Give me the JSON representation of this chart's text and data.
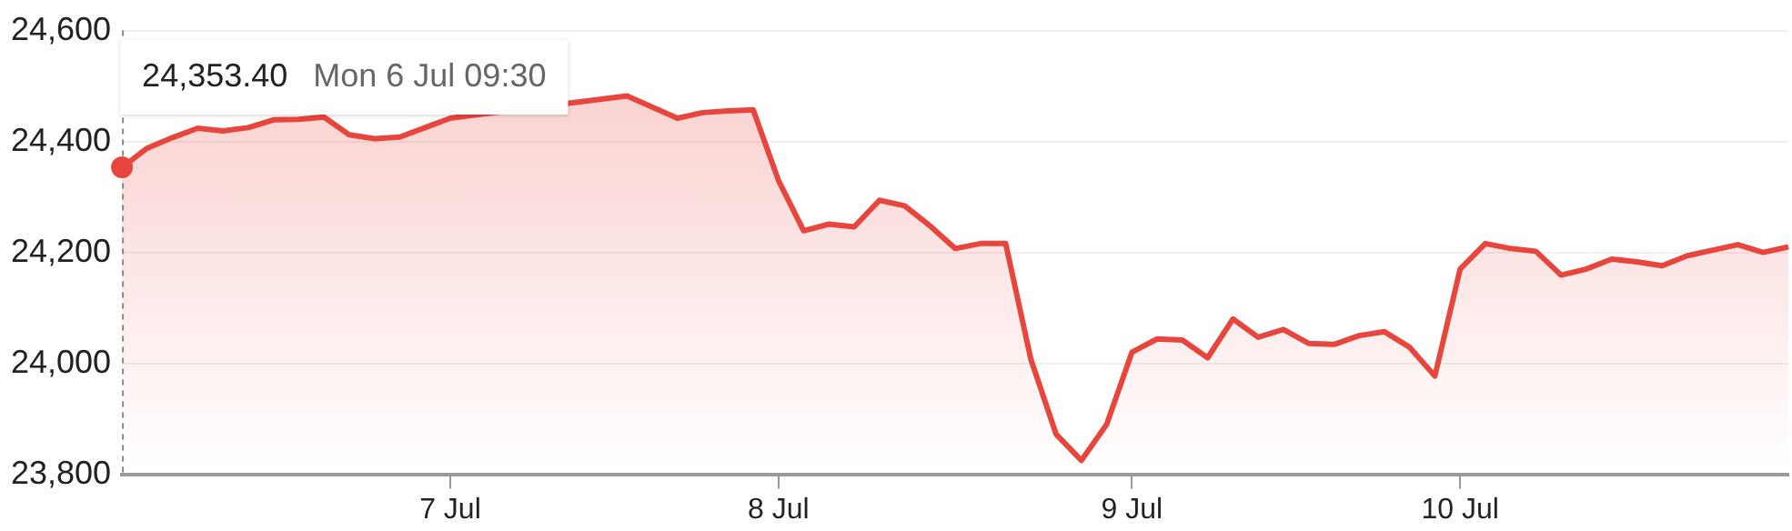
{
  "chart_data": {
    "type": "area",
    "categories": [
      null,
      null,
      null,
      null,
      null,
      null,
      null,
      null,
      null,
      null,
      null,
      null,
      null,
      "7 Jul",
      null,
      null,
      null,
      null,
      null,
      null,
      null,
      null,
      null,
      null,
      null,
      null,
      "8 Jul",
      null,
      null,
      null,
      null,
      null,
      null,
      null,
      null,
      null,
      null,
      null,
      null,
      null,
      "9 Jul",
      null,
      null,
      null,
      null,
      null,
      null,
      null,
      null,
      null,
      null,
      null,
      null,
      "10 Jul",
      null,
      null,
      null,
      null,
      null,
      null,
      null,
      null,
      null,
      null,
      null,
      null,
      null
    ],
    "series": [
      {
        "color": "#e8453c",
        "values": [
          24353.4,
          24388,
          24407,
          24424,
          24419,
          24425,
          24439,
          24440,
          24444,
          24412,
          24405,
          24408,
          24425,
          24442,
          null,
          null,
          null,
          null,
          null,
          null,
          24482,
          24462,
          24442,
          24452,
          24455,
          24457,
          24330,
          24239,
          24251,
          24246,
          24294,
          24284,
          24248,
          24207,
          24216,
          24216,
          24007,
          23872,
          23825,
          23890,
          24020,
          24044,
          24042,
          24010,
          24080,
          24047,
          24061,
          24036,
          24034,
          24050,
          24057,
          24029,
          23977,
          24170,
          24216,
          24207,
          24202,
          24159,
          24170,
          24188,
          24183,
          24176,
          24194,
          24204,
          24214,
          24200,
          24210
        ]
      }
    ],
    "ylim": [
      23800,
      24600
    ],
    "yticks": [
      {
        "value": 23800,
        "label": "23,800"
      },
      {
        "value": 24000,
        "label": "24,000"
      },
      {
        "value": 24200,
        "label": "24,200"
      },
      {
        "value": 24400,
        "label": "24,400"
      },
      {
        "value": 24600,
        "label": "24,600"
      }
    ],
    "grid": "y",
    "annotations": [
      "24,353.40",
      "Mon 6 Jul 09:30"
    ]
  }
}
